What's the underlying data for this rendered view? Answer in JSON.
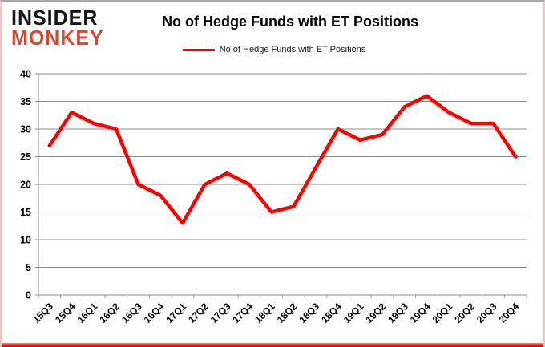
{
  "logo": {
    "line1": "INSIDER",
    "line2": "MONKEY"
  },
  "header": {
    "title": "No of Hedge Funds with ET Positions"
  },
  "legend": {
    "label": "No of Hedge Funds with ET Positions"
  },
  "colors": {
    "line": "#fe0000",
    "grid": "#8e8e8e",
    "axis": "#8e8e8e",
    "tick_label": "#000000",
    "logo_black": "#161414",
    "logo_red": "#d04a36",
    "bottom_bar": "#fb0006"
  },
  "chart_data": {
    "type": "line",
    "title": "No of Hedge Funds with ET Positions",
    "categories": [
      "15Q3",
      "15Q4",
      "16Q1",
      "16Q2",
      "16Q3",
      "16Q4",
      "17Q1",
      "17Q2",
      "17Q3",
      "17Q4",
      "18Q1",
      "18Q2",
      "18Q3",
      "18Q4",
      "19Q1",
      "19Q2",
      "19Q3",
      "19Q4",
      "20Q1",
      "20Q2",
      "20Q3",
      "20Q4"
    ],
    "series": [
      {
        "name": "No of Hedge Funds with ET Positions",
        "color": "#fe0000",
        "values": [
          27,
          33,
          31,
          30,
          20,
          18,
          13,
          20,
          22,
          20,
          15,
          16,
          23,
          30,
          28,
          29,
          34,
          36,
          33,
          31,
          31,
          25
        ]
      }
    ],
    "xlabel": "",
    "ylabel": "",
    "ylim": [
      0,
      40
    ],
    "yticks": [
      0,
      5,
      10,
      15,
      20,
      25,
      30,
      35,
      40
    ],
    "grid": true,
    "legend_position": "top-center",
    "x_tick_rotation": -45
  }
}
